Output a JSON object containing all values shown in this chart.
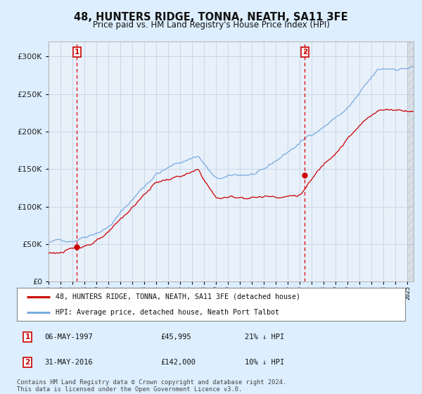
{
  "title": "48, HUNTERS RIDGE, TONNA, NEATH, SA11 3FE",
  "subtitle": "Price paid vs. HM Land Registry's House Price Index (HPI)",
  "legend_line1": "48, HUNTERS RIDGE, TONNA, NEATH, SA11 3FE (detached house)",
  "legend_line2": "HPI: Average price, detached house, Neath Port Talbot",
  "sale1_date": "06-MAY-1997",
  "sale1_price": 45995,
  "sale1_pct": "21% ↓ HPI",
  "sale2_date": "31-MAY-2016",
  "sale2_price": 142000,
  "sale2_pct": "10% ↓ HPI",
  "footnote1": "Contains HM Land Registry data © Crown copyright and database right 2024.",
  "footnote2": "This data is licensed under the Open Government Licence v3.0.",
  "sale1_year": 1997.37,
  "sale2_year": 2016.41,
  "red_color": "#cc0000",
  "blue_color": "#7aaadd",
  "bg_color": "#ddeeff",
  "plot_bg": "#e8f0fa",
  "grid_color": "#c8d8e8",
  "dashed_color": "#dd0000",
  "ylim_max": 320000,
  "xlim_min": 1995.0,
  "xlim_max": 2025.5
}
